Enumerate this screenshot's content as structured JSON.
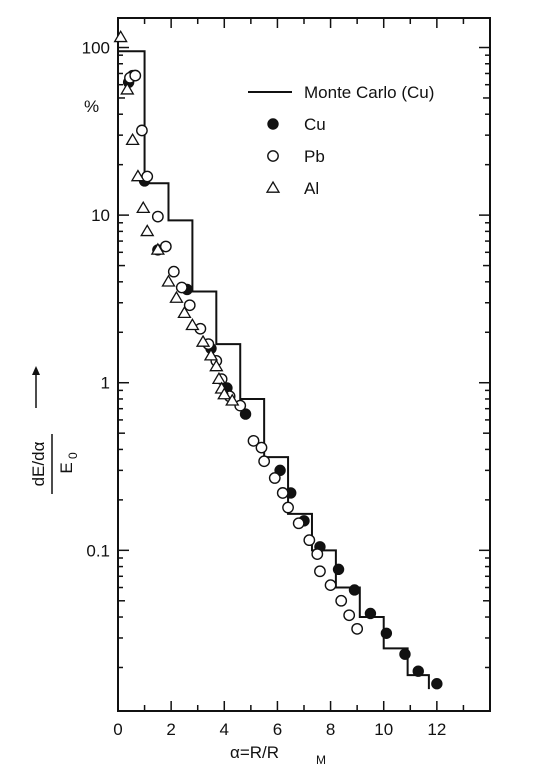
{
  "chart_data": {
    "type": "scatter",
    "title": "",
    "xlabel": "α=R/R",
    "xlabel_sub": "M",
    "ylabel": "dE/dα",
    "ylabel_denominator": "E",
    "ylabel_denominator_sub": "0",
    "y_unit": "%",
    "xlim": [
      0,
      14
    ],
    "ylim": [
      0.011,
      150
    ],
    "yscale": "log",
    "grid": false,
    "legend_position": "top-right",
    "x_tick_labels": [
      "0",
      "2",
      "4",
      "6",
      "8",
      "10",
      "12"
    ],
    "y_tick_labels": [
      "100",
      "10",
      "1",
      "0.1"
    ],
    "y_tick_values": [
      100,
      10,
      1,
      0.1
    ],
    "series": [
      {
        "name": "Monte Carlo (Cu)",
        "style": "step",
        "color": "#111111",
        "edges": [
          0,
          1,
          1.9,
          2.8,
          3.7,
          4.6,
          5.5,
          6.4,
          7.3,
          8.2,
          9.1,
          10,
          10.9,
          11.7
        ],
        "values": [
          95,
          15.5,
          9.3,
          3.5,
          1.7,
          0.8,
          0.36,
          0.165,
          0.1,
          0.06,
          0.04,
          0.026,
          0.018
        ]
      },
      {
        "name": "Cu",
        "style": "marker-filled-circle",
        "color": "#111111",
        "points": [
          [
            0.4,
            62
          ],
          [
            0.55,
            68
          ],
          [
            1.0,
            16
          ],
          [
            1.5,
            6.2
          ],
          [
            2.6,
            3.6
          ],
          [
            3.5,
            1.6
          ],
          [
            4.1,
            0.93
          ],
          [
            4.8,
            0.65
          ],
          [
            6.1,
            0.3
          ],
          [
            6.5,
            0.22
          ],
          [
            7.0,
            0.15
          ],
          [
            7.6,
            0.105
          ],
          [
            8.3,
            0.077
          ],
          [
            8.9,
            0.058
          ],
          [
            9.5,
            0.042
          ],
          [
            10.1,
            0.032
          ],
          [
            10.8,
            0.024
          ],
          [
            11.3,
            0.019
          ],
          [
            12.0,
            0.016
          ]
        ]
      },
      {
        "name": "Pb",
        "style": "marker-open-circle",
        "color": "#111111",
        "points": [
          [
            0.45,
            66
          ],
          [
            0.65,
            68
          ],
          [
            0.9,
            32
          ],
          [
            1.1,
            17
          ],
          [
            1.5,
            9.8
          ],
          [
            1.8,
            6.5
          ],
          [
            2.1,
            4.6
          ],
          [
            2.4,
            3.7
          ],
          [
            2.7,
            2.9
          ],
          [
            3.1,
            2.1
          ],
          [
            3.4,
            1.7
          ],
          [
            3.7,
            1.35
          ],
          [
            3.9,
            1.05
          ],
          [
            4.2,
            0.83
          ],
          [
            4.6,
            0.73
          ],
          [
            5.1,
            0.45
          ],
          [
            5.4,
            0.41
          ],
          [
            5.5,
            0.34
          ],
          [
            5.9,
            0.27
          ],
          [
            6.2,
            0.22
          ],
          [
            6.4,
            0.18
          ],
          [
            6.8,
            0.145
          ],
          [
            7.2,
            0.115
          ],
          [
            7.5,
            0.095
          ],
          [
            7.6,
            0.075
          ],
          [
            8.0,
            0.062
          ],
          [
            8.4,
            0.05
          ],
          [
            8.7,
            0.041
          ],
          [
            9.0,
            0.034
          ]
        ]
      },
      {
        "name": "Al",
        "style": "marker-open-triangle",
        "color": "#111111",
        "points": [
          [
            0.1,
            115
          ],
          [
            0.35,
            56
          ],
          [
            0.55,
            28
          ],
          [
            0.75,
            17
          ],
          [
            0.95,
            11
          ],
          [
            1.1,
            8
          ],
          [
            1.5,
            6.2
          ],
          [
            1.9,
            4
          ],
          [
            2.2,
            3.2
          ],
          [
            2.5,
            2.6
          ],
          [
            2.8,
            2.2
          ],
          [
            3.2,
            1.75
          ],
          [
            3.5,
            1.45
          ],
          [
            3.7,
            1.25
          ],
          [
            3.8,
            1.05
          ],
          [
            3.9,
            0.92
          ],
          [
            4.0,
            0.85
          ],
          [
            4.3,
            0.78
          ]
        ]
      }
    ]
  }
}
